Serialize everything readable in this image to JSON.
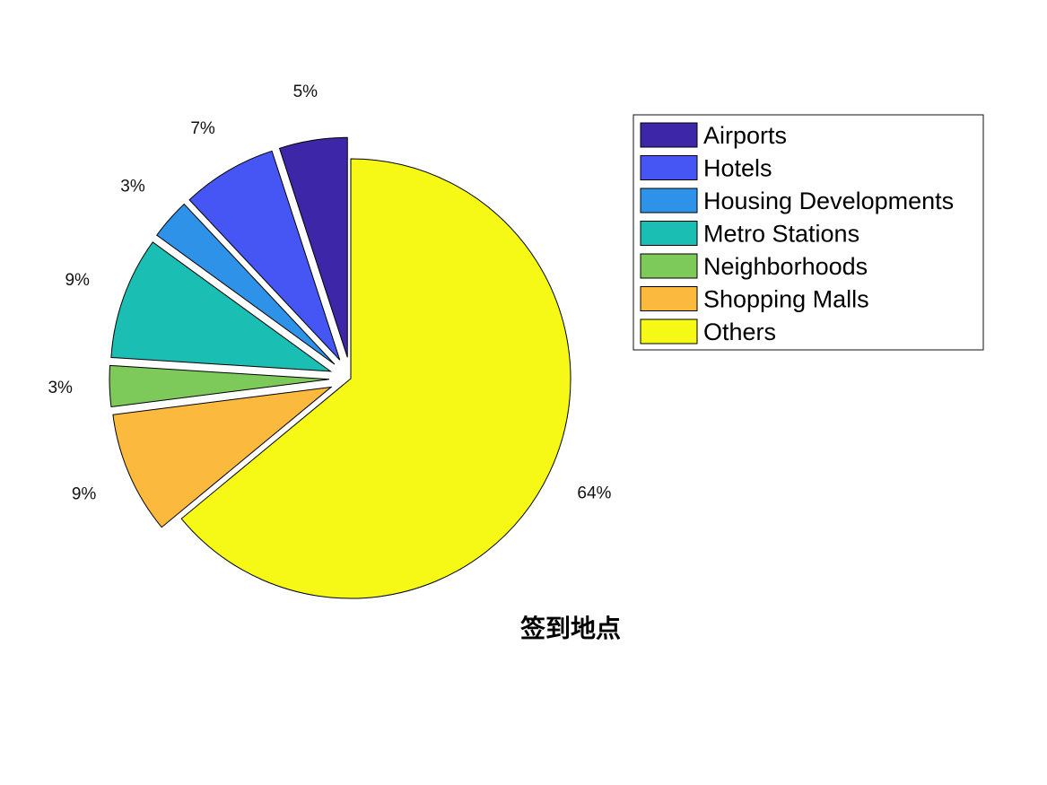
{
  "chart_data": {
    "type": "pie",
    "title": "签到地点",
    "exploded": true,
    "legend_position": "right",
    "slices": [
      {
        "name": "Airports",
        "value": 5,
        "label": "5%",
        "color": "#3E26A8"
      },
      {
        "name": "Hotels",
        "value": 7,
        "label": "7%",
        "color": "#4656F4"
      },
      {
        "name": "Housing Developments",
        "value": 3,
        "label": "3%",
        "color": "#2E93E8"
      },
      {
        "name": "Metro Stations",
        "value": 9,
        "label": "9%",
        "color": "#1BBEB3"
      },
      {
        "name": "Neighborhoods",
        "value": 3,
        "label": "3%",
        "color": "#7DC95A"
      },
      {
        "name": "Shopping Malls",
        "value": 9,
        "label": "9%",
        "color": "#FBB93E"
      },
      {
        "name": "Others",
        "value": 64,
        "label": "64%",
        "color": "#F5F915"
      }
    ]
  }
}
